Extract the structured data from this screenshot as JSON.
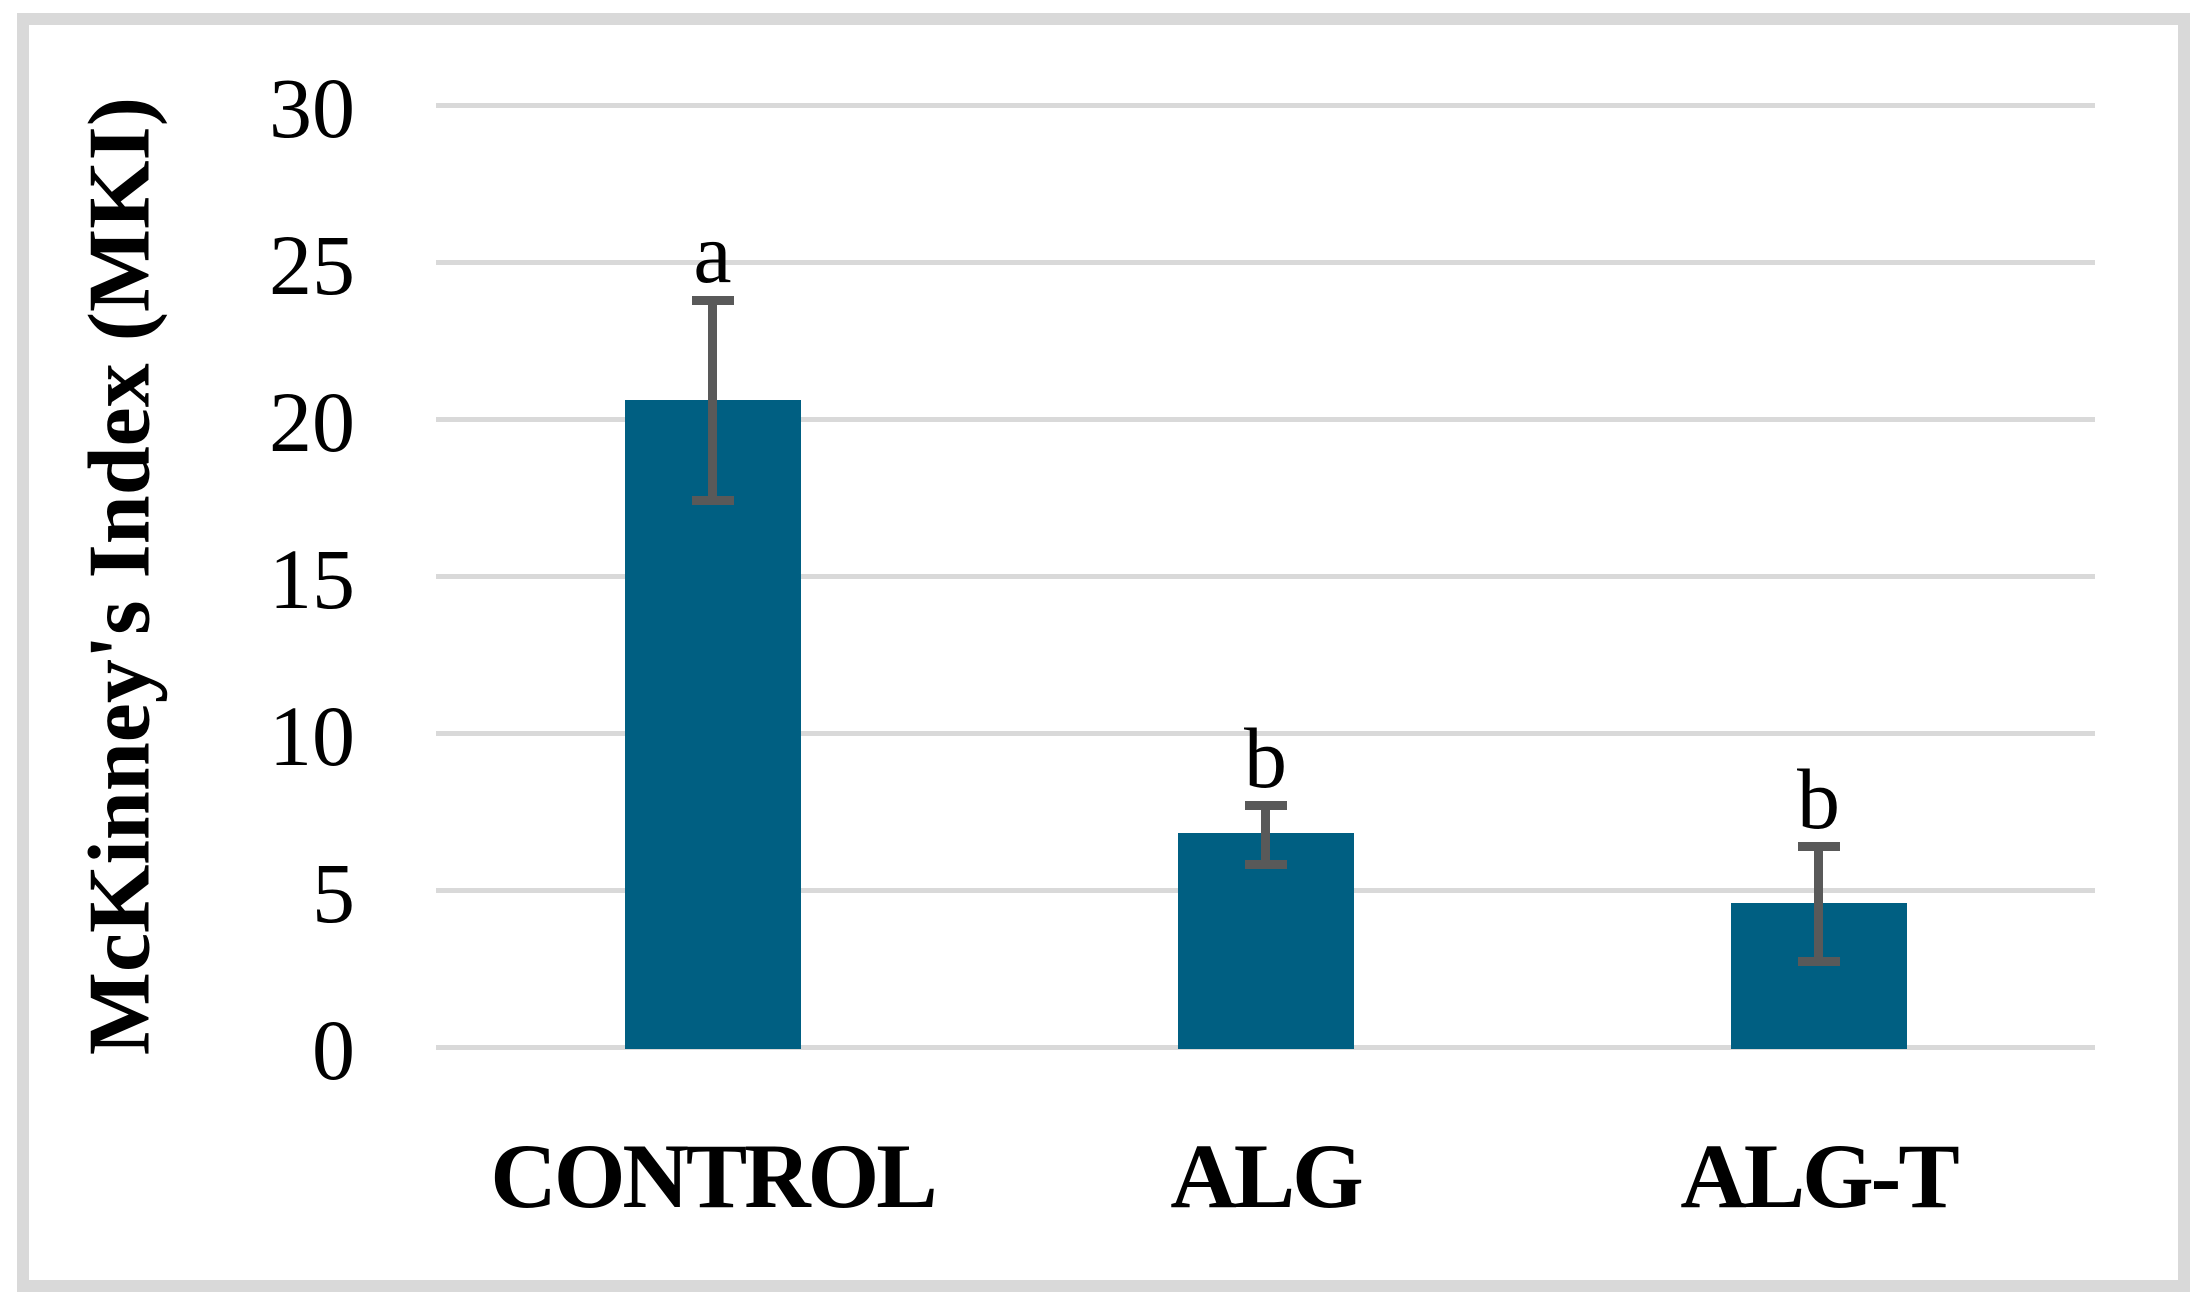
{
  "chart_data": {
    "type": "bar",
    "title": "",
    "ylabel": "McKinney's Index (MKI)",
    "xlabel": "",
    "categories": [
      "CONTROL",
      "ALG",
      "ALG-T"
    ],
    "values": [
      20.6,
      6.8,
      4.6
    ],
    "error_upper": [
      23.8,
      7.7,
      6.4
    ],
    "error_lower": [
      17.4,
      5.8,
      2.7
    ],
    "sig_letters": [
      "a",
      "b",
      "b"
    ],
    "yticks": [
      0,
      5,
      10,
      15,
      20,
      25,
      30
    ],
    "ylim": [
      0,
      30
    ],
    "grid": true,
    "legend": "none",
    "colors": {
      "bar": "#005F82",
      "error_bar": "#595959",
      "gridline": "#D9D9D9",
      "frame": "#D9D9D9",
      "text": "#000000"
    }
  }
}
